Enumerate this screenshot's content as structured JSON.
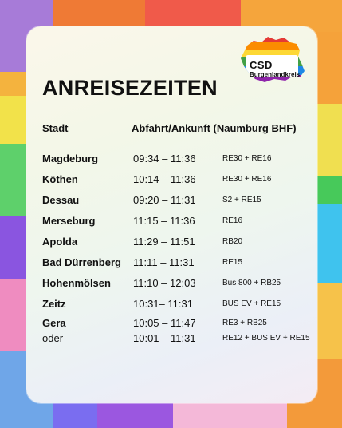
{
  "title": "ANREISEZEITEN",
  "logo": {
    "main": "CSD",
    "sub": "Burgenlandkreis"
  },
  "header": {
    "city": "Stadt",
    "times": "Abfahrt/Ankunft (Naumburg BHF)"
  },
  "rows": [
    {
      "city": "Magdeburg",
      "time": "09:34 – 11:36",
      "connection": "RE30 + RE16"
    },
    {
      "city": "Köthen",
      "time": "10:14 – 11:36",
      "connection": "RE30 + RE16"
    },
    {
      "city": "Dessau",
      "time": "09:20 – 11:31",
      "connection": "S2 + RE15"
    },
    {
      "city": "Merseburg",
      "time": "11:15 – 11:36",
      "connection": "RE16"
    },
    {
      "city": "Apolda",
      "time": "11:29 – 11:51",
      "connection": "RB20"
    },
    {
      "city": "Bad Dürrenberg",
      "time": "11:11 – 11:31",
      "connection": "RE15"
    },
    {
      "city": "Hohenmölsen",
      "time": "11:10 – 12:03",
      "connection": "Bus 800 + RB25"
    },
    {
      "city": "Zeitz",
      "time": "10:31– 11:31",
      "connection": "BUS EV + RE15"
    },
    {
      "city": "Gera",
      "time": "10:05 – 11:47",
      "connection": "RE3 + RB25"
    }
  ],
  "alternative": {
    "label": "oder",
    "time": "10:01 – 11:31",
    "connection": "RE12 + BUS EV + RE15"
  },
  "colors": {
    "rainbow": [
      "#e53935",
      "#fb8c00",
      "#fdd835",
      "#43a047",
      "#1e88e5",
      "#8e24aa"
    ]
  }
}
